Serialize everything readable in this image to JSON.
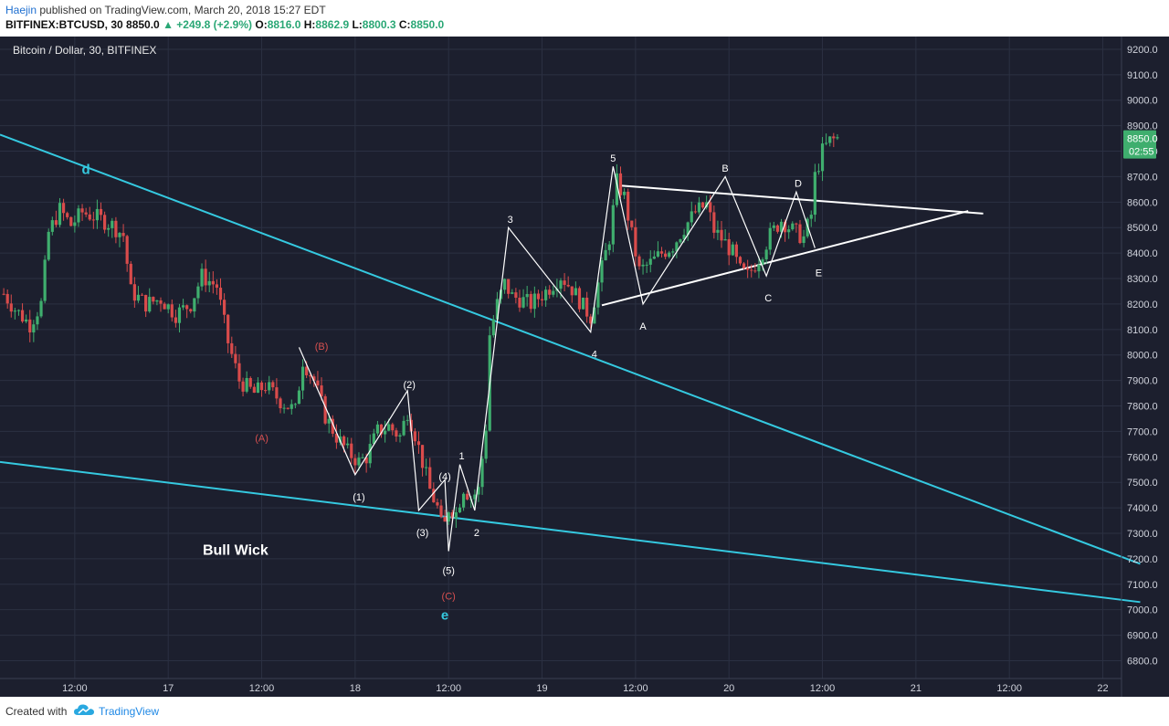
{
  "header": {
    "author": "Haejin",
    "published_text": " published on TradingView.com, March 20, 2018 15:27 EDT",
    "symbol": "BITFINEX:BTCUSD, 30",
    "last": "8850.0",
    "change": "▲ +249.8 (+2.9%)",
    "ohlc": [
      {
        "label": "O:",
        "value": "8816.0"
      },
      {
        "label": "H:",
        "value": "8862.9"
      },
      {
        "label": "L:",
        "value": "8800.3"
      },
      {
        "label": "C:",
        "value": "8850.0"
      }
    ]
  },
  "footer": {
    "created_with": "Created with",
    "brand": "TradingView"
  },
  "colors": {
    "bg": "#1c1f2e",
    "grid": "#2b3042",
    "up": "#3fae6e",
    "down": "#d94b4b",
    "cyan": "#35c9e0",
    "white": "#ffffff",
    "red_label": "#d75050",
    "price_tag": "#3fae6e"
  },
  "chart_data": {
    "type": "candlestick",
    "title": "Bitcoin / Dollar, 30, BITFINEX",
    "x_range": [
      0,
      30
    ],
    "ylim": [
      6730,
      9250
    ],
    "y_ticks": [
      6800,
      6900,
      7000,
      7100,
      7200,
      7300,
      7400,
      7500,
      7600,
      7700,
      7800,
      7900,
      8000,
      8100,
      8200,
      8300,
      8400,
      8500,
      8600,
      8700,
      8800,
      8900,
      9000,
      9100,
      9200
    ],
    "x_ticks": [
      {
        "t": 2,
        "label": "12:00"
      },
      {
        "t": 4.5,
        "label": "17"
      },
      {
        "t": 7,
        "label": "12:00"
      },
      {
        "t": 9.5,
        "label": "18"
      },
      {
        "t": 12,
        "label": "12:00"
      },
      {
        "t": 14.5,
        "label": "19"
      },
      {
        "t": 17,
        "label": "12:00"
      },
      {
        "t": 19.5,
        "label": "20"
      },
      {
        "t": 22,
        "label": "12:00"
      },
      {
        "t": 24.5,
        "label": "21"
      },
      {
        "t": 27,
        "label": "12:00"
      },
      {
        "t": 29.5,
        "label": "22"
      }
    ],
    "last_price": "8850.0",
    "countdown": "02:55",
    "price_path": [
      [
        0.1,
        8240
      ],
      [
        0.4,
        8180
      ],
      [
        0.8,
        8120
      ],
      [
        1.1,
        8200
      ],
      [
        1.3,
        8480
      ],
      [
        1.6,
        8570
      ],
      [
        1.9,
        8510
      ],
      [
        2.2,
        8560
      ],
      [
        2.6,
        8540
      ],
      [
        3.0,
        8510
      ],
      [
        3.3,
        8470
      ],
      [
        3.5,
        8250
      ],
      [
        3.9,
        8200
      ],
      [
        4.3,
        8220
      ],
      [
        4.7,
        8160
      ],
      [
        5.1,
        8200
      ],
      [
        5.4,
        8310
      ],
      [
        5.8,
        8270
      ],
      [
        6.1,
        8050
      ],
      [
        6.4,
        7900
      ],
      [
        6.8,
        7850
      ],
      [
        7.1,
        7880
      ],
      [
        7.5,
        7820
      ],
      [
        7.9,
        7780
      ],
      [
        8.1,
        7980
      ],
      [
        8.4,
        7900
      ],
      [
        8.7,
        7760
      ],
      [
        9.0,
        7680
      ],
      [
        9.3,
        7620
      ],
      [
        9.6,
        7580
      ],
      [
        9.8,
        7600
      ],
      [
        10.1,
        7700
      ],
      [
        10.4,
        7720
      ],
      [
        10.7,
        7680
      ],
      [
        10.9,
        7780
      ],
      [
        11.1,
        7690
      ],
      [
        11.3,
        7580
      ],
      [
        11.5,
        7470
      ],
      [
        11.7,
        7400
      ],
      [
        11.85,
        7300
      ],
      [
        12.0,
        7400
      ],
      [
        12.2,
        7380
      ],
      [
        12.4,
        7480
      ],
      [
        12.6,
        7440
      ],
      [
        12.8,
        7470
      ],
      [
        13.0,
        7720
      ],
      [
        13.1,
        8080
      ],
      [
        13.3,
        8200
      ],
      [
        13.5,
        8280
      ],
      [
        13.7,
        8230
      ],
      [
        13.9,
        8220
      ],
      [
        14.2,
        8200
      ],
      [
        14.6,
        8250
      ],
      [
        15.0,
        8310
      ],
      [
        15.3,
        8260
      ],
      [
        15.6,
        8190
      ],
      [
        15.8,
        8150
      ],
      [
        16.0,
        8280
      ],
      [
        16.3,
        8460
      ],
      [
        16.5,
        8680
      ],
      [
        16.7,
        8620
      ],
      [
        16.9,
        8470
      ],
      [
        17.1,
        8330
      ],
      [
        17.4,
        8360
      ],
      [
        17.7,
        8400
      ],
      [
        18.0,
        8430
      ],
      [
        18.3,
        8500
      ],
      [
        18.6,
        8560
      ],
      [
        18.9,
        8590
      ],
      [
        19.1,
        8490
      ],
      [
        19.4,
        8440
      ],
      [
        19.6,
        8400
      ],
      [
        19.8,
        8330
      ],
      [
        20.0,
        8310
      ],
      [
        20.3,
        8380
      ],
      [
        20.6,
        8470
      ],
      [
        20.9,
        8530
      ],
      [
        21.2,
        8490
      ],
      [
        21.5,
        8460
      ],
      [
        21.7,
        8550
      ],
      [
        21.8,
        8700
      ],
      [
        22.0,
        8800
      ],
      [
        22.2,
        8840
      ],
      [
        22.4,
        8850
      ]
    ],
    "trendlines": [
      {
        "name": "cyan-upper",
        "color": "cyan",
        "width": 2,
        "points": [
          [
            0,
            8865
          ],
          [
            30.5,
            7180
          ]
        ]
      },
      {
        "name": "cyan-lower",
        "color": "cyan",
        "width": 2,
        "points": [
          [
            0,
            7580
          ],
          [
            30.5,
            7030
          ]
        ]
      },
      {
        "name": "triangle-upper",
        "color": "white",
        "width": 2,
        "points": [
          [
            16.6,
            8665
          ],
          [
            26.3,
            8555
          ]
        ]
      },
      {
        "name": "triangle-lower",
        "color": "white",
        "width": 2,
        "points": [
          [
            16.1,
            8195
          ],
          [
            25.9,
            8565
          ]
        ]
      }
    ],
    "wave_paths": [
      {
        "name": "abc-correction",
        "points": [
          [
            8.0,
            8030
          ],
          [
            9.5,
            7530
          ],
          [
            10.9,
            7860
          ],
          [
            11.2,
            7390
          ],
          [
            11.9,
            7510
          ],
          [
            12.0,
            7230
          ]
        ]
      },
      {
        "name": "impulse",
        "points": [
          [
            12.0,
            7230
          ],
          [
            12.3,
            7570
          ],
          [
            12.7,
            7390
          ],
          [
            13.6,
            8500
          ],
          [
            15.8,
            8090
          ],
          [
            16.4,
            8740
          ]
        ]
      },
      {
        "name": "triangle",
        "points": [
          [
            16.4,
            8740
          ],
          [
            17.2,
            8200
          ],
          [
            19.4,
            8700
          ],
          [
            20.5,
            8310
          ],
          [
            21.3,
            8640
          ],
          [
            21.8,
            8420
          ]
        ]
      }
    ],
    "wave_labels": [
      {
        "text": "d",
        "t": 2.3,
        "p": 8725,
        "color": "cyan",
        "size": 15,
        "bold": true
      },
      {
        "text": "e",
        "t": 11.9,
        "p": 6975,
        "color": "cyan",
        "size": 15,
        "bold": true
      },
      {
        "text": "Bull Wick",
        "t": 6.3,
        "p": 7230,
        "color": "white",
        "size": 16,
        "bold": true
      },
      {
        "text": "(A)",
        "t": 7.0,
        "p": 7670,
        "color": "red",
        "size": 11,
        "bold": false
      },
      {
        "text": "(B)",
        "t": 8.6,
        "p": 8030,
        "color": "red",
        "size": 11,
        "bold": false
      },
      {
        "text": "(C)",
        "t": 12.0,
        "p": 7050,
        "color": "red",
        "size": 11,
        "bold": false
      },
      {
        "text": "(1)",
        "t": 9.6,
        "p": 7440,
        "color": "white",
        "size": 11,
        "bold": false
      },
      {
        "text": "(2)",
        "t": 10.95,
        "p": 7880,
        "color": "white",
        "size": 11,
        "bold": false
      },
      {
        "text": "(3)",
        "t": 11.3,
        "p": 7300,
        "color": "white",
        "size": 11,
        "bold": false
      },
      {
        "text": "(4)",
        "t": 11.9,
        "p": 7520,
        "color": "white",
        "size": 11,
        "bold": false
      },
      {
        "text": "(5)",
        "t": 12.0,
        "p": 7150,
        "color": "white",
        "size": 11,
        "bold": false
      },
      {
        "text": "1",
        "t": 12.35,
        "p": 7600,
        "color": "white",
        "size": 11,
        "bold": false
      },
      {
        "text": "2",
        "t": 12.75,
        "p": 7300,
        "color": "white",
        "size": 11,
        "bold": false
      },
      {
        "text": "3",
        "t": 13.65,
        "p": 8530,
        "color": "white",
        "size": 11,
        "bold": false
      },
      {
        "text": "4",
        "t": 15.9,
        "p": 8000,
        "color": "white",
        "size": 11,
        "bold": false
      },
      {
        "text": "5",
        "t": 16.4,
        "p": 8770,
        "color": "white",
        "size": 11,
        "bold": false
      },
      {
        "text": "A",
        "t": 17.2,
        "p": 8110,
        "color": "white",
        "size": 11,
        "bold": false
      },
      {
        "text": "B",
        "t": 19.4,
        "p": 8730,
        "color": "white",
        "size": 11,
        "bold": false
      },
      {
        "text": "C",
        "t": 20.55,
        "p": 8220,
        "color": "white",
        "size": 11,
        "bold": false
      },
      {
        "text": "D",
        "t": 21.35,
        "p": 8670,
        "color": "white",
        "size": 11,
        "bold": false
      },
      {
        "text": "E",
        "t": 21.9,
        "p": 8320,
        "color": "white",
        "size": 11,
        "bold": false
      }
    ]
  }
}
